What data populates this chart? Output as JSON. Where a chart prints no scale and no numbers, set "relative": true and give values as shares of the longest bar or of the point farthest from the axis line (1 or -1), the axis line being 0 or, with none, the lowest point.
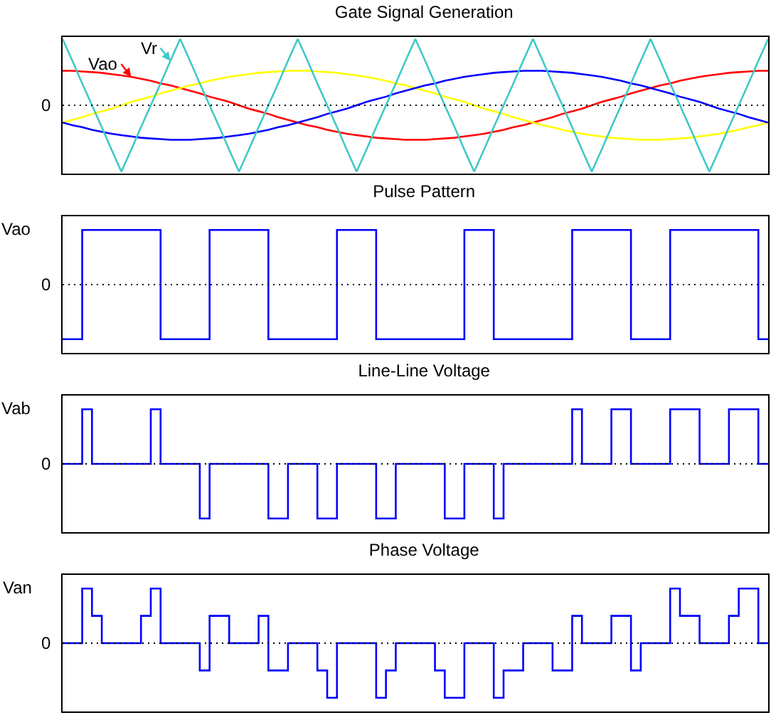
{
  "chart_data": [
    {
      "type": "line",
      "title": "Gate Signal Generation",
      "relative": true,
      "grid": false,
      "legend": "top left",
      "marker": "none",
      "line_style": "solid",
      "categories": [
        null,
        null,
        null,
        null,
        null,
        null,
        null,
        null,
        null,
        null,
        null,
        null,
        null,
        null,
        null,
        null,
        null,
        null,
        null,
        null,
        null,
        null,
        null,
        null,
        null,
        null,
        null,
        null,
        null,
        null,
        null,
        null,
        null,
        null,
        null,
        null,
        null,
        null,
        null,
        null,
        null,
        null,
        null,
        null,
        null,
        null,
        null,
        null,
        null,
        null,
        null,
        null,
        null,
        null,
        null,
        null,
        null,
        null,
        null,
        null,
        null,
        null,
        null,
        null,
        null,
        null,
        null,
        null,
        null,
        null,
        null,
        null,
        null
      ],
      "series": [
        {
          "name": "Vao",
          "color": "#ff0000",
          "values": [
            0.52,
            0.52,
            0.51,
            0.5,
            0.49,
            0.47,
            0.45,
            0.43,
            0.4,
            0.37,
            0.33,
            0.3,
            0.26,
            0.22,
            0.18,
            0.13,
            0.09,
            0.05,
            0,
            -0.05,
            -0.09,
            -0.13,
            -0.18,
            -0.22,
            -0.26,
            -0.3,
            -0.33,
            -0.37,
            -0.4,
            -0.43,
            -0.45,
            -0.47,
            -0.49,
            -0.5,
            -0.51,
            -0.52,
            -0.52,
            -0.52,
            -0.51,
            -0.5,
            -0.49,
            -0.47,
            -0.45,
            -0.43,
            -0.4,
            -0.37,
            -0.33,
            -0.3,
            -0.26,
            -0.22,
            -0.18,
            -0.13,
            -0.09,
            -0.05,
            0,
            0.05,
            0.09,
            0.13,
            0.18,
            0.22,
            0.26,
            0.3,
            0.33,
            0.37,
            0.4,
            0.43,
            0.45,
            0.47,
            0.49,
            0.5,
            0.51,
            0.52,
            0.52
          ]
        },
        {
          "color": "#ffff00",
          "values": [
            -0.26,
            -0.22,
            -0.18,
            -0.13,
            -0.09,
            -0.05,
            0,
            0.05,
            0.09,
            0.13,
            0.18,
            0.22,
            0.26,
            0.3,
            0.33,
            0.37,
            0.4,
            0.43,
            0.45,
            0.47,
            0.49,
            0.5,
            0.51,
            0.52,
            0.52,
            0.52,
            0.51,
            0.5,
            0.49,
            0.47,
            0.45,
            0.43,
            0.4,
            0.37,
            0.33,
            0.3,
            0.26,
            0.22,
            0.18,
            0.13,
            0.09,
            0.05,
            0,
            -0.05,
            -0.09,
            -0.13,
            -0.18,
            -0.22,
            -0.26,
            -0.3,
            -0.33,
            -0.37,
            -0.4,
            -0.43,
            -0.45,
            -0.47,
            -0.49,
            -0.5,
            -0.51,
            -0.52,
            -0.52,
            -0.52,
            -0.51,
            -0.5,
            -0.49,
            -0.47,
            -0.45,
            -0.43,
            -0.4,
            -0.37,
            -0.33,
            -0.3,
            -0.26
          ]
        },
        {
          "color": "#0000ff",
          "values": [
            -0.26,
            -0.3,
            -0.33,
            -0.37,
            -0.4,
            -0.43,
            -0.45,
            -0.47,
            -0.49,
            -0.5,
            -0.51,
            -0.52,
            -0.52,
            -0.52,
            -0.51,
            -0.5,
            -0.49,
            -0.47,
            -0.45,
            -0.43,
            -0.4,
            -0.37,
            -0.33,
            -0.3,
            -0.26,
            -0.22,
            -0.18,
            -0.13,
            -0.09,
            -0.05,
            0,
            0.05,
            0.09,
            0.13,
            0.18,
            0.22,
            0.26,
            0.3,
            0.33,
            0.37,
            0.4,
            0.43,
            0.45,
            0.47,
            0.49,
            0.5,
            0.51,
            0.52,
            0.52,
            0.52,
            0.51,
            0.5,
            0.49,
            0.47,
            0.45,
            0.43,
            0.4,
            0.37,
            0.33,
            0.3,
            0.26,
            0.22,
            0.18,
            0.13,
            0.09,
            0.05,
            0,
            -0.05,
            -0.09,
            -0.13,
            -0.18,
            -0.22,
            -0.26
          ]
        },
        {
          "name": "Vr",
          "color": "#40c8c8",
          "values": [
            1,
            0.67,
            0.33,
            0,
            -0.33,
            -0.67,
            -1,
            -0.67,
            -0.33,
            0,
            0.33,
            0.67,
            1,
            0.67,
            0.33,
            0,
            -0.33,
            -0.67,
            -1,
            -0.67,
            -0.33,
            0,
            0.33,
            0.67,
            1,
            0.67,
            0.33,
            0,
            -0.33,
            -0.67,
            -1,
            -0.67,
            -0.33,
            0,
            0.33,
            0.67,
            1,
            0.67,
            0.33,
            0,
            -0.33,
            -0.67,
            -1,
            -0.67,
            -0.33,
            0,
            0.33,
            0.67,
            1,
            0.67,
            0.33,
            0,
            -0.33,
            -0.67,
            -1,
            -0.67,
            -0.33,
            0,
            0.33,
            0.67,
            1,
            0.67,
            0.33,
            0,
            -0.33,
            -0.67,
            -1,
            -0.67,
            -0.33,
            0,
            0.33,
            0.67,
            1
          ]
        }
      ],
      "ref_lines": [
        {
          "axis": "y",
          "value": 0,
          "label": "0",
          "line_style": "dotted",
          "color": "#000000"
        }
      ]
    },
    {
      "type": "step",
      "title": "Pulse Pattern",
      "ylabel": "Vao",
      "relative": true,
      "grid": false,
      "marker": "none",
      "line_style": "solid",
      "color": "#0000ff",
      "categories": [
        null,
        null,
        null,
        null,
        null,
        null,
        null,
        null,
        null,
        null,
        null,
        null,
        null,
        null,
        null,
        null,
        null,
        null,
        null,
        null,
        null,
        null,
        null,
        null,
        null,
        null,
        null,
        null,
        null,
        null,
        null,
        null,
        null,
        null,
        null,
        null,
        null,
        null,
        null,
        null,
        null,
        null,
        null,
        null,
        null,
        null,
        null,
        null,
        null,
        null,
        null,
        null,
        null,
        null,
        null,
        null,
        null,
        null,
        null,
        null,
        null,
        null,
        null,
        null,
        null,
        null,
        null,
        null,
        null,
        null,
        null,
        null,
        null
      ],
      "values": [
        -1,
        -1,
        1,
        1,
        1,
        1,
        1,
        1,
        1,
        1,
        -1,
        -1,
        -1,
        -1,
        -1,
        1,
        1,
        1,
        1,
        1,
        1,
        -1,
        -1,
        -1,
        -1,
        -1,
        -1,
        -1,
        1,
        1,
        1,
        1,
        -1,
        -1,
        -1,
        -1,
        -1,
        -1,
        -1,
        -1,
        -1,
        1,
        1,
        1,
        -1,
        -1,
        -1,
        -1,
        -1,
        -1,
        -1,
        -1,
        1,
        1,
        1,
        1,
        1,
        1,
        -1,
        -1,
        -1,
        -1,
        1,
        1,
        1,
        1,
        1,
        1,
        1,
        1,
        1,
        -1,
        -1
      ],
      "ref_lines": [
        {
          "axis": "y",
          "value": 0,
          "label": "0",
          "line_style": "dotted",
          "color": "#000000"
        }
      ]
    },
    {
      "type": "step",
      "title": "Line-Line Voltage",
      "ylabel": "Vab",
      "relative": true,
      "grid": false,
      "marker": "none",
      "line_style": "solid",
      "color": "#0000ff",
      "categories": [
        null,
        null,
        null,
        null,
        null,
        null,
        null,
        null,
        null,
        null,
        null,
        null,
        null,
        null,
        null,
        null,
        null,
        null,
        null,
        null,
        null,
        null,
        null,
        null,
        null,
        null,
        null,
        null,
        null,
        null,
        null,
        null,
        null,
        null,
        null,
        null,
        null,
        null,
        null,
        null,
        null,
        null,
        null,
        null,
        null,
        null,
        null,
        null,
        null,
        null,
        null,
        null,
        null,
        null,
        null,
        null,
        null,
        null,
        null,
        null,
        null,
        null,
        null,
        null,
        null,
        null,
        null,
        null,
        null,
        null,
        null,
        null,
        null
      ],
      "values": [
        0,
        0,
        1,
        0,
        0,
        0,
        0,
        0,
        0,
        1,
        0,
        0,
        0,
        0,
        -1,
        0,
        0,
        0,
        0,
        0,
        0,
        -1,
        -1,
        0,
        0,
        0,
        -1,
        -1,
        0,
        0,
        0,
        0,
        -1,
        -1,
        0,
        0,
        0,
        0,
        0,
        -1,
        -1,
        0,
        0,
        0,
        -1,
        0,
        0,
        0,
        0,
        0,
        0,
        0,
        1,
        0,
        0,
        0,
        1,
        1,
        0,
        0,
        0,
        0,
        1,
        1,
        1,
        0,
        0,
        0,
        1,
        1,
        1,
        0,
        0
      ],
      "ref_lines": [
        {
          "axis": "y",
          "value": 0,
          "label": "0",
          "line_style": "dotted",
          "color": "#000000"
        }
      ]
    },
    {
      "type": "step",
      "title": "Phase Voltage",
      "ylabel": "Van",
      "relative": true,
      "grid": false,
      "marker": "none",
      "line_style": "solid",
      "color": "#0000ff",
      "categories": [
        null,
        null,
        null,
        null,
        null,
        null,
        null,
        null,
        null,
        null,
        null,
        null,
        null,
        null,
        null,
        null,
        null,
        null,
        null,
        null,
        null,
        null,
        null,
        null,
        null,
        null,
        null,
        null,
        null,
        null,
        null,
        null,
        null,
        null,
        null,
        null,
        null,
        null,
        null,
        null,
        null,
        null,
        null,
        null,
        null,
        null,
        null,
        null,
        null,
        null,
        null,
        null,
        null,
        null,
        null,
        null,
        null,
        null,
        null,
        null,
        null,
        null,
        null,
        null,
        null,
        null,
        null,
        null,
        null,
        null,
        null,
        null,
        null
      ],
      "values": [
        0,
        0,
        1,
        0.5,
        0,
        0,
        0,
        0,
        0.5,
        1,
        0,
        0,
        0,
        0,
        -0.5,
        0.5,
        0.5,
        0,
        0,
        0,
        0.5,
        -0.5,
        -0.5,
        0,
        0,
        0,
        -0.5,
        -1,
        0,
        0,
        0,
        0,
        -1,
        -0.5,
        0,
        0,
        0,
        0,
        -0.5,
        -1,
        -1,
        0,
        0,
        0,
        -1,
        -0.5,
        -0.5,
        0,
        0,
        0,
        -0.5,
        -0.5,
        0.5,
        0,
        0,
        0,
        0.5,
        0.5,
        -0.5,
        0,
        0,
        0,
        1,
        0.5,
        0.5,
        0,
        0,
        0,
        0.5,
        1,
        1,
        0,
        0
      ],
      "ref_lines": [
        {
          "axis": "y",
          "value": 0,
          "label": "0",
          "line_style": "dotted",
          "color": "#000000"
        }
      ]
    }
  ]
}
